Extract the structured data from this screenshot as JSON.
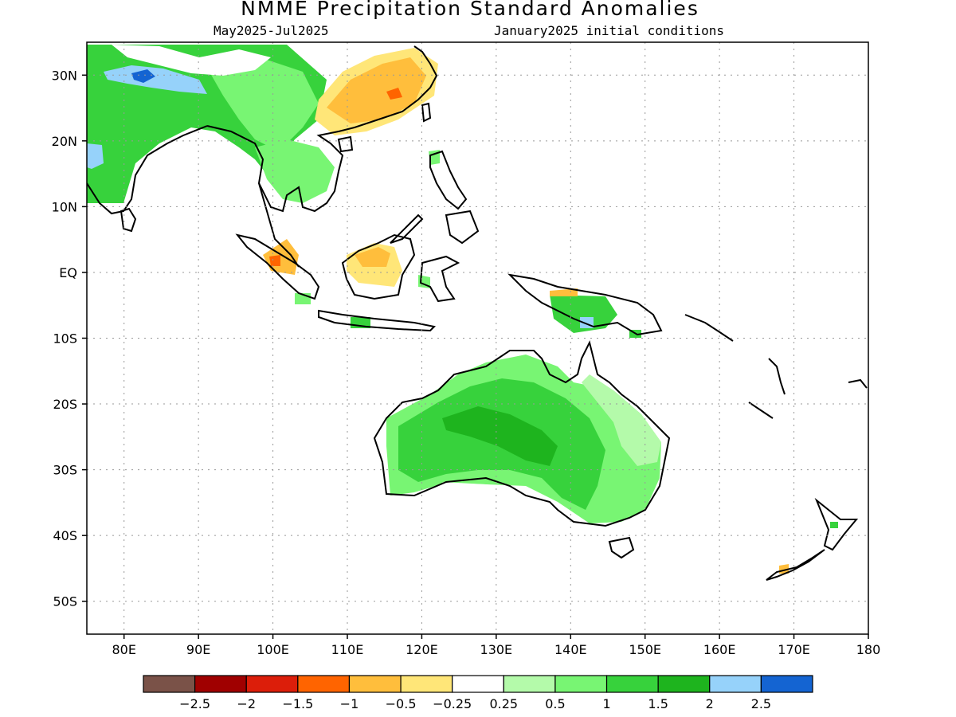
{
  "title": "NMME Precipitation Standard Anomalies",
  "subtitle_left": "May2025-Jul2025",
  "subtitle_right": "January2025 initial conditions",
  "map": {
    "lon_range": [
      75,
      180
    ],
    "lat_range": [
      -55,
      35
    ],
    "lat_ticks": [
      {
        "value": 30,
        "label": "30N"
      },
      {
        "value": 20,
        "label": "20N"
      },
      {
        "value": 10,
        "label": "10N"
      },
      {
        "value": 0,
        "label": "EQ"
      },
      {
        "value": -10,
        "label": "10S"
      },
      {
        "value": -20,
        "label": "20S"
      },
      {
        "value": -30,
        "label": "30S"
      },
      {
        "value": -40,
        "label": "40S"
      },
      {
        "value": -50,
        "label": "50S"
      }
    ],
    "lon_ticks": [
      {
        "value": 80,
        "label": "80E"
      },
      {
        "value": 90,
        "label": "90E"
      },
      {
        "value": 100,
        "label": "100E"
      },
      {
        "value": 110,
        "label": "110E"
      },
      {
        "value": 120,
        "label": "120E"
      },
      {
        "value": 130,
        "label": "130E"
      },
      {
        "value": 140,
        "label": "140E"
      },
      {
        "value": 150,
        "label": "150E"
      },
      {
        "value": 160,
        "label": "160E"
      },
      {
        "value": 170,
        "label": "170E"
      },
      {
        "value": 180,
        "label": "180"
      }
    ],
    "gridlines": true
  },
  "colorbar": {
    "colors": [
      "#7a5248",
      "#a00000",
      "#dc1e0a",
      "#ff6400",
      "#ffbe3c",
      "#ffe678",
      "#ffffff",
      "#b4faaa",
      "#78f573",
      "#37d23c",
      "#1eb41e",
      "#96d2fa",
      "#1464d2"
    ],
    "labels": [
      "-2.5",
      "-2",
      "-1.5",
      "-1",
      "-0.5",
      "-0.25",
      "0.25",
      "0.5",
      "1",
      "1.5",
      "2",
      "2.5"
    ]
  }
}
